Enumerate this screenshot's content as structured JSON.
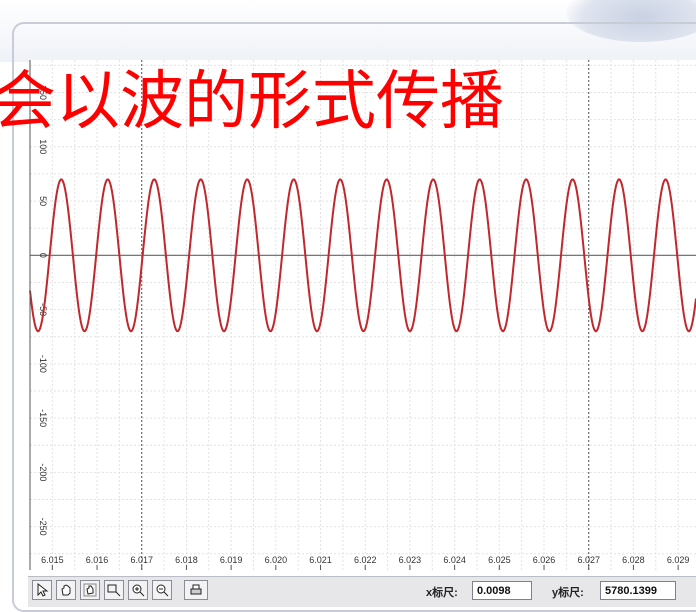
{
  "overlay_title": "以波的形式传播",
  "overlay_partial_char": "会",
  "chart_data": {
    "type": "line",
    "series": [
      {
        "amplitude": 70,
        "period": 0.00104,
        "phase_peak_x": 6.0152
      }
    ],
    "x_ticks": [
      "6.015",
      "6.016",
      "6.017",
      "6.018",
      "6.019",
      "6.020",
      "6.021",
      "6.022",
      "6.023",
      "6.024",
      "6.025",
      "6.026",
      "6.027",
      "6.028",
      "6.029"
    ],
    "y_ticks": [
      "150",
      "100",
      "50",
      "0",
      "-50",
      "-100",
      "-150",
      "-200",
      "-250"
    ],
    "xlim": [
      6.0145,
      6.0294
    ],
    "ylim": [
      -290,
      180
    ],
    "grid": true,
    "line_color": "#c0282d"
  },
  "toolbar": {
    "buttons": [
      "arrow-cursor-icon",
      "hand-icon",
      "hand-drag-icon",
      "zoom-box-icon",
      "zoom-in-icon",
      "zoom-out-icon",
      "print-icon"
    ],
    "x_scale_label": "x标尺:",
    "x_scale_value": "0.0098",
    "y_scale_label": "y标尺:",
    "y_scale_value": "5780.1399"
  }
}
